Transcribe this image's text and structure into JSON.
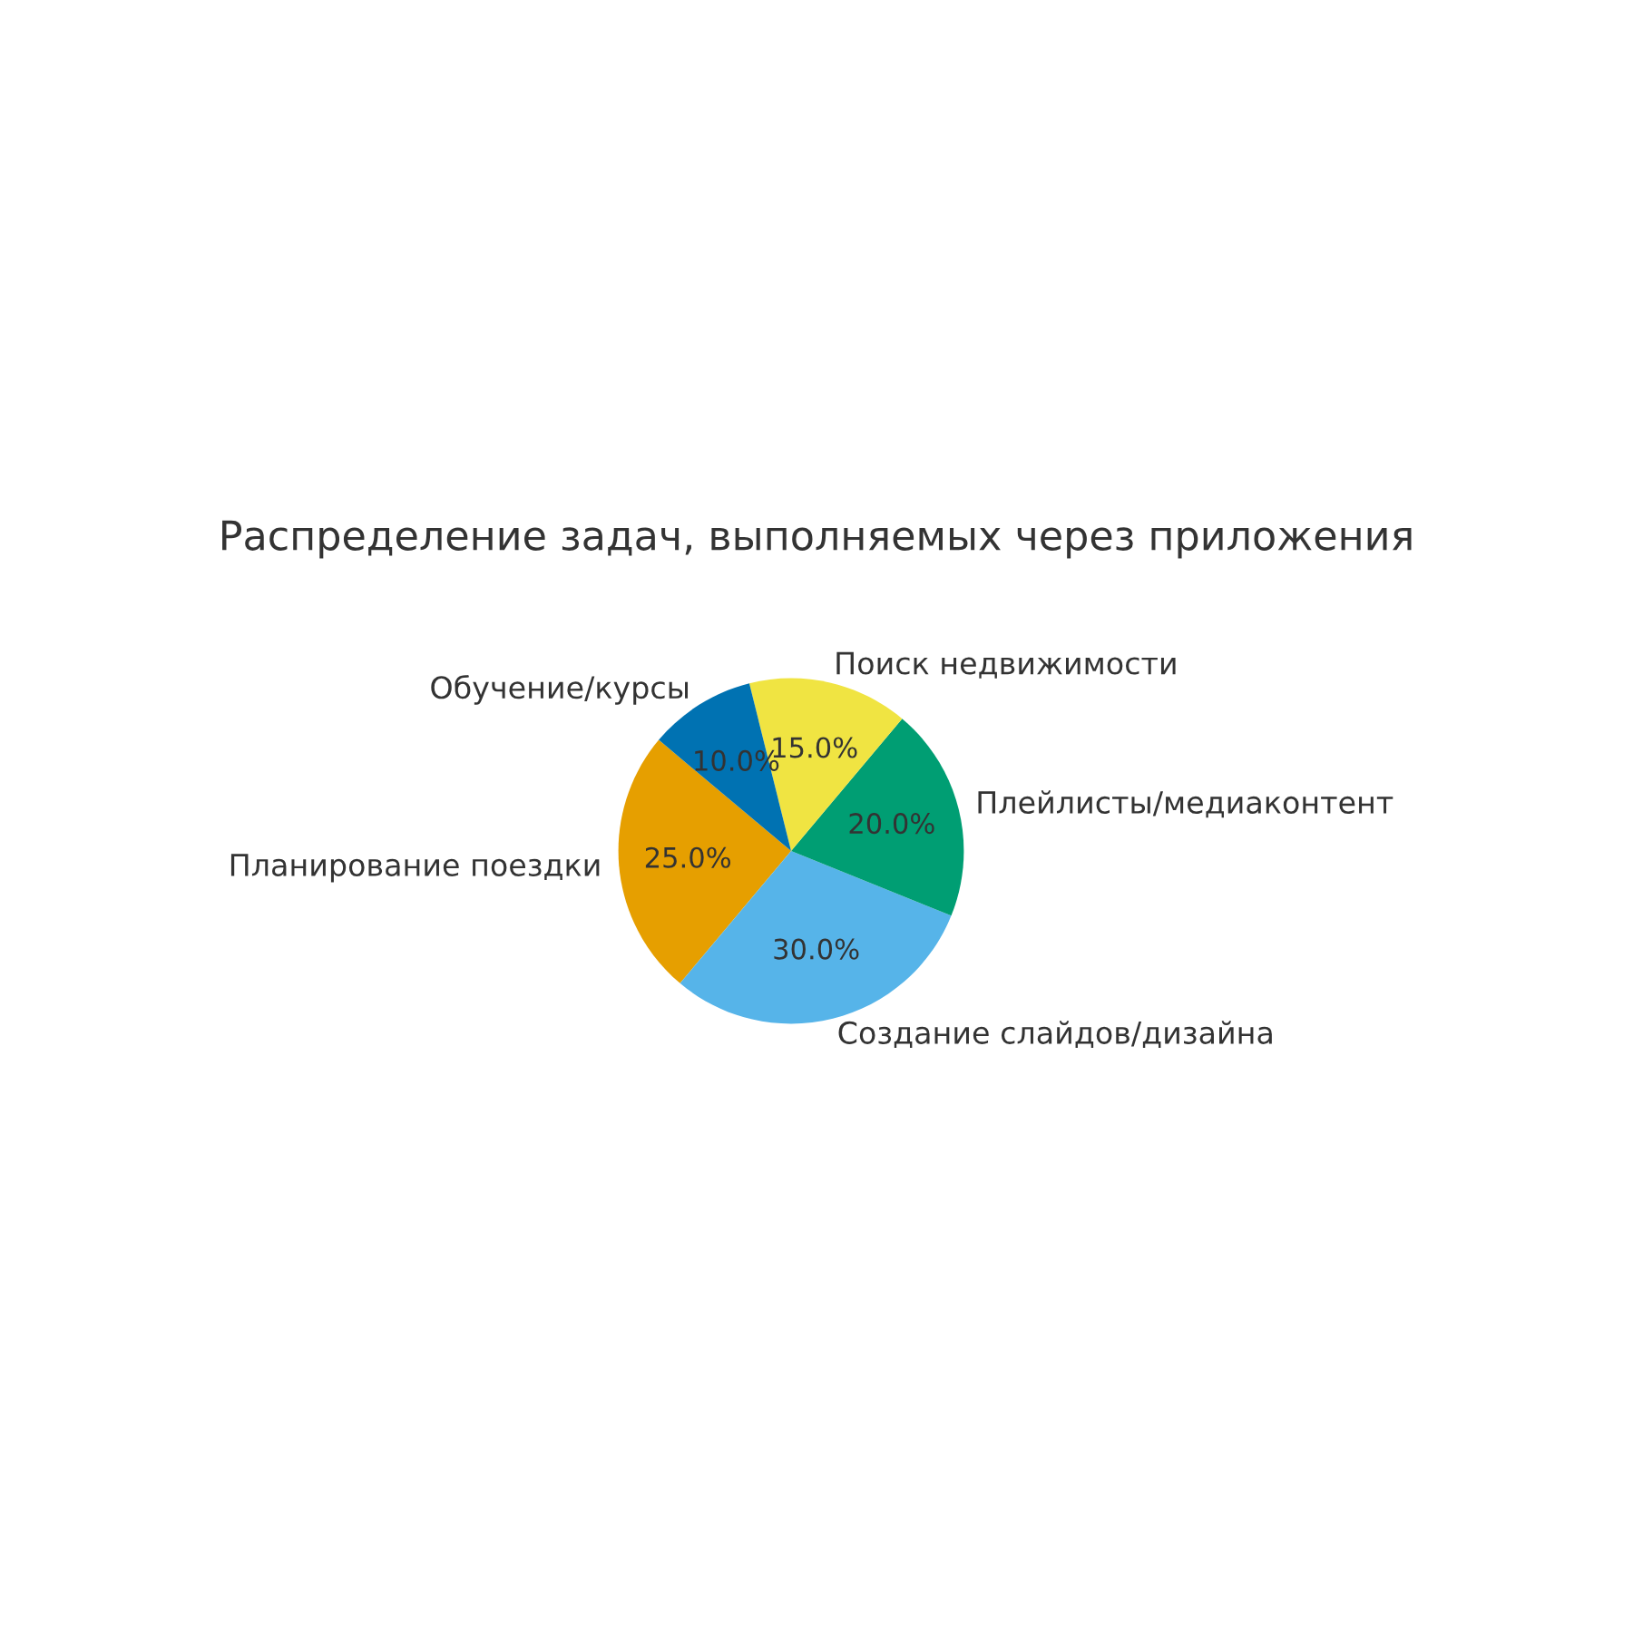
{
  "chart_data": {
    "type": "pie",
    "title": "Распределение задач, выполняемых через приложения",
    "categories": [
      "Планирование поездки",
      "Создание слайдов/дизайна",
      "Плейлисты/медиаконтент",
      "Поиск недвижимости",
      "Обучение/курсы"
    ],
    "values": [
      25,
      30,
      20,
      15,
      10
    ],
    "colors": [
      "#e69f00",
      "#56b4e9",
      "#009e73",
      "#f0e442",
      "#0072b2"
    ],
    "value_labels": [
      "25.0%",
      "30.0%",
      "20.0%",
      "15.0%",
      "10.0%"
    ]
  }
}
